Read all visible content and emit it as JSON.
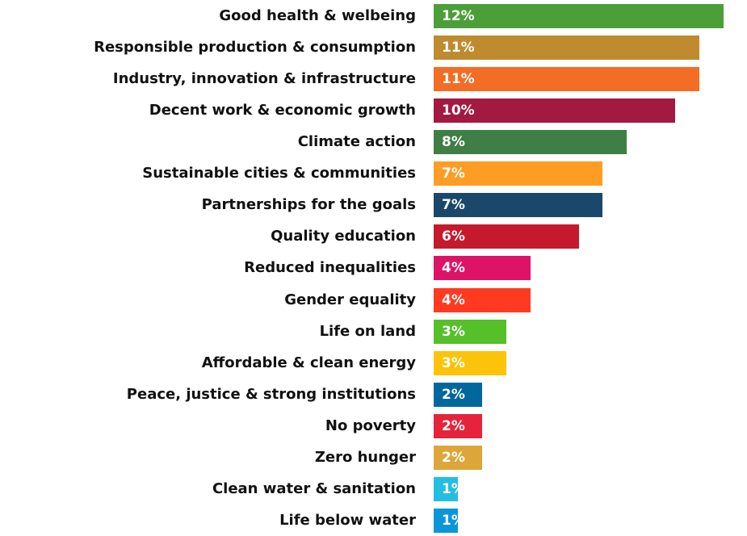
{
  "chart_data": {
    "type": "bar",
    "orientation": "horizontal",
    "title": "",
    "xlabel": "",
    "ylabel": "",
    "grid": false,
    "categories": [
      "Good health & welbeing",
      "Responsible production & consumption",
      "Industry, innovation & infrastructure",
      "Decent work & economic growth",
      "Climate action",
      "Sustainable cities & communities",
      "Partnerships for the goals",
      "Quality education",
      "Reduced inequalities",
      "Gender equality",
      "Life on land",
      "Affordable & clean energy",
      "Peace, justice & strong institutions",
      "No poverty",
      "Zero hunger",
      "Clean water & sanitation",
      "Life below water"
    ],
    "values": [
      12,
      11,
      11,
      10,
      8,
      7,
      7,
      6,
      4,
      4,
      3,
      3,
      2,
      2,
      2,
      1,
      1
    ],
    "value_labels": [
      "12%",
      "11%",
      "11%",
      "10%",
      "8%",
      "7%",
      "7%",
      "6%",
      "4%",
      "4%",
      "3%",
      "3%",
      "2%",
      "2%",
      "2%",
      "1%",
      "1%"
    ],
    "colors": [
      "#4c9f38",
      "#bf8b2e",
      "#f36d25",
      "#a21942",
      "#3f7e44",
      "#fd9d24",
      "#19486a",
      "#c5192d",
      "#dd1367",
      "#ff3a21",
      "#56c02b",
      "#fcc30b",
      "#00689d",
      "#e5243b",
      "#dda63a",
      "#26bde2",
      "#0a97d9"
    ]
  }
}
